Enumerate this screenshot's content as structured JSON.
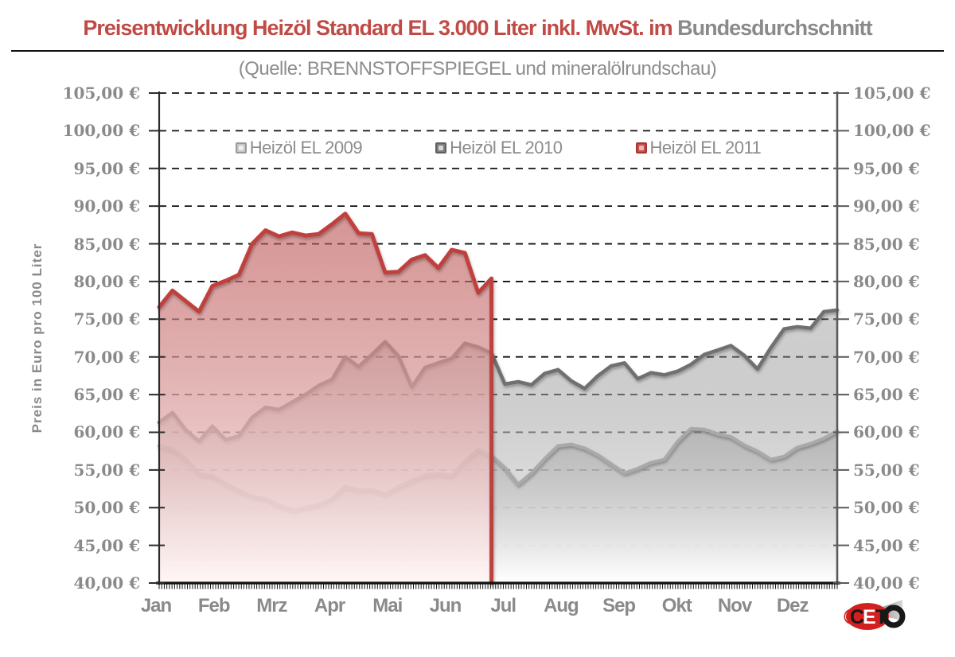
{
  "title": {
    "red": "Preisentwicklung Heizöl Standard EL 3.000 Liter inkl. MwSt. im",
    "gray": "Bundesdurchschnitt"
  },
  "subtitle": "(Quelle: BRENNSTOFFSPIEGEL  und mineralölrundschau)",
  "y_axis": {
    "title": "Preis in Euro pro 100 Liter",
    "tick_labels": [
      "105,00 €",
      "100,00 €",
      "95,00 €",
      "90,00 €",
      "85,00 €",
      "80,00 €",
      "75,00 €",
      "70,00 €",
      "65,00 €",
      "60,00 €",
      "55,00 €",
      "50,00 €",
      "45,00 €",
      "40,00 €"
    ]
  },
  "x_axis": {
    "months": [
      "Jan",
      "Feb",
      "Mrz",
      "Apr",
      "Mai",
      "Jun",
      "Jul",
      "Aug",
      "Sep",
      "Okt",
      "Nov",
      "Dez"
    ]
  },
  "legend": {
    "items": [
      {
        "label": "Heizöl EL 2009",
        "border": "#9b9b9b",
        "bg": "#c6c6c6",
        "inner": "#f0f0f0"
      },
      {
        "label": "Heizöl EL 2010",
        "border": "#606060",
        "bg": "#7e7e7e",
        "inner": "#d8d8d8"
      },
      {
        "label": "Heizöl EL 2011",
        "border": "#a83632",
        "bg": "#c4504c",
        "inner": "#e9b7b5"
      }
    ]
  },
  "logo": {
    "copyright": "©",
    "brand": "CETO"
  },
  "colors": {
    "title_red": "#c04a45",
    "text_gray": "#8a8a8a",
    "grid": "#111111",
    "axis_left": "#2b2b2b",
    "axis_right": "#5a5a5a"
  },
  "chart_data": {
    "type": "area",
    "title": "Preisentwicklung Heizöl Standard EL 3.000 Liter inkl. MwSt. im Bundesdurchschnitt",
    "source": "(Quelle: BRENNSTOFFSPIEGEL und mineralölrundschau)",
    "ylabel": "Preis in Euro pro 100 Liter",
    "ylim": [
      40,
      105
    ],
    "ytick_step": 5,
    "currency": "€",
    "grid": "horizontal-dashed",
    "legend_position": "top-inside",
    "categories": [
      "Jan",
      "Feb",
      "Mrz",
      "Apr",
      "Mai",
      "Jun",
      "Jul",
      "Aug",
      "Sep",
      "Okt",
      "Nov",
      "Dez"
    ],
    "sampling": "weekly estimates read from plot, Euro per 100 Liter",
    "series": [
      {
        "name": "Heizöl EL 2009",
        "line_color": "#a9a9a9",
        "line_width": 4,
        "fill_top": "rgba(150,150,150,0.42)",
        "fill_bottom": "rgba(255,255,255,0.96)",
        "ends_month": "Dez",
        "values": [
          58.2,
          57.8,
          56.5,
          54.5,
          54.2,
          53.2,
          52.3,
          51.5,
          51.2,
          50.3,
          49.6,
          50.0,
          50.4,
          51.2,
          52.8,
          52.3,
          52.4,
          51.8,
          52.8,
          53.6,
          54.3,
          54.5,
          54.2,
          56.2,
          57.7,
          56.9,
          55.3,
          53.1,
          54.6,
          56.5,
          58.2,
          58.4,
          57.9,
          57.0,
          55.8,
          54.6,
          55.2,
          56.0,
          56.4,
          58.8,
          60.5,
          60.4,
          59.8,
          59.4,
          58.3,
          57.5,
          56.4,
          56.8,
          58.0,
          58.5,
          59.2,
          60.2
        ]
      },
      {
        "name": "Heizöl EL 2010",
        "line_color": "#6f6f6f",
        "line_width": 4.5,
        "fill_top": "rgba(120,120,120,0.35)",
        "fill_bottom": "rgba(255,255,255,0.93)",
        "ends_month": "Dez",
        "values": [
          61.3,
          62.6,
          60.3,
          58.8,
          60.8,
          59.0,
          59.5,
          62.0,
          63.3,
          63.0,
          64.0,
          65.0,
          66.2,
          67.0,
          70.0,
          68.7,
          70.3,
          72.0,
          70.1,
          66.0,
          68.6,
          69.2,
          69.8,
          71.8,
          71.3,
          70.5,
          66.4,
          66.7,
          66.3,
          67.8,
          68.3,
          66.8,
          65.8,
          67.5,
          68.8,
          69.2,
          67.1,
          67.9,
          67.6,
          68.1,
          69.0,
          70.3,
          70.9,
          71.5,
          70.2,
          68.4,
          71.2,
          73.7,
          74.0,
          73.8,
          76.0,
          76.2
        ]
      },
      {
        "name": "Heizöl EL 2011",
        "line_color": "#c0413d",
        "line_width": 5,
        "fill_top": "rgba(186,80,80,0.60)",
        "fill_bottom": "rgba(255,246,246,0.92)",
        "ends_month": "Jun",
        "values": [
          76.6,
          78.8,
          77.4,
          76.0,
          79.4,
          80.1,
          80.9,
          85.0,
          86.8,
          86.0,
          86.5,
          86.1,
          86.3,
          87.6,
          89.0,
          86.4,
          86.3,
          81.2,
          81.3,
          82.9,
          83.5,
          81.8,
          84.2,
          83.8,
          78.5,
          80.4
        ]
      }
    ]
  }
}
